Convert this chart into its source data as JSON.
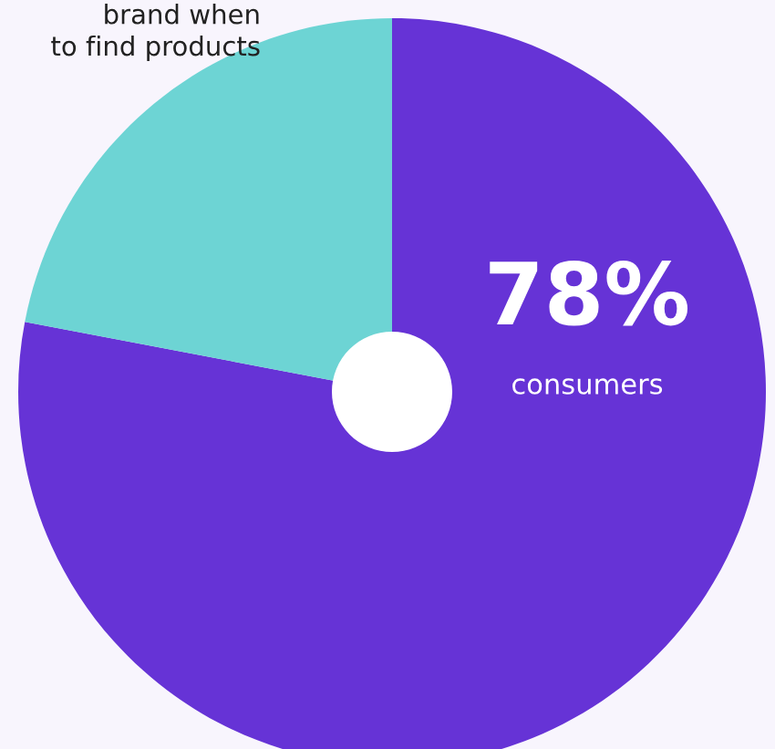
{
  "chart_data": {
    "type": "pie",
    "categories": [
      null,
      null
    ],
    "values": [
      78,
      22
    ],
    "colors": [
      "#6633d6",
      "#6dd4d4"
    ],
    "value_labels": [
      "78%",
      null
    ],
    "annotations": [
      "brand when\nto find products",
      "consumers"
    ]
  }
}
